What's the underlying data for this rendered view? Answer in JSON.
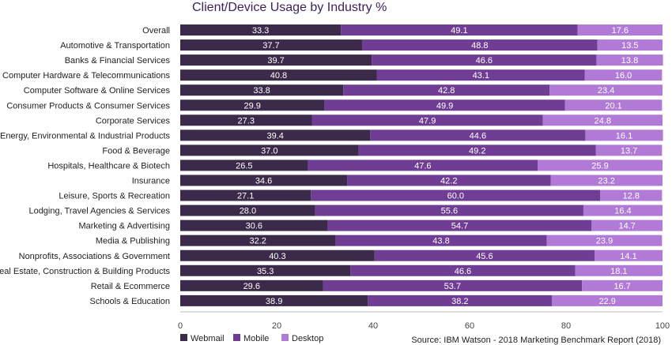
{
  "chart_data": {
    "type": "bar",
    "orientation": "horizontal",
    "stacked": true,
    "title": "Client/Device Usage by Industry %",
    "source": "Source: IBM Watson - 2018 Marketing Benchmark Report (2018)",
    "xlim": [
      0,
      100
    ],
    "xticks": [
      0,
      20,
      40,
      60,
      80,
      100
    ],
    "grid": false,
    "legend_position": "bottom-left",
    "categories": [
      "Overall",
      "Automotive & Transportation",
      "Banks & Financial Services",
      "Computer Hardware & Telecommunications",
      "Computer Software & Online Services",
      "Consumer Products & Consumer Services",
      "Corporate Services",
      "Energy, Environmental & Industrial Products",
      "Food & Beverage",
      "Hospitals, Healthcare & Biotech",
      "Insurance",
      "Leisure, Sports & Recreation",
      "Lodging, Travel Agencies & Services",
      "Marketing & Advertising",
      "Media & Publishing",
      "Nonprofits, Associations & Government",
      "Real Estate, Construction & Building Products",
      "Retail & Ecommerce",
      "Schools & Education"
    ],
    "series": [
      {
        "name": "Webmail",
        "color": "#3b2a4a",
        "values": [
          "33.3",
          "37.7",
          "39.7",
          "40.8",
          "33.8",
          "29.9",
          "27.3",
          "39.4",
          "37.0",
          "26.5",
          "34.6",
          "27.1",
          "28.0",
          "30.6",
          "32.2",
          "40.3",
          "35.3",
          "29.6",
          "38.9"
        ]
      },
      {
        "name": "Mobile",
        "color": "#6f3d94",
        "values": [
          "49.1",
          "48.8",
          "46.6",
          "43.1",
          "42.8",
          "49.9",
          "47.9",
          "44.6",
          "49.2",
          "47.6",
          "42.2",
          "60.0",
          "55.6",
          "54.7",
          "43.8",
          "45.6",
          "46.6",
          "53.7",
          "38.2"
        ]
      },
      {
        "name": "Desktop",
        "color": "#b07ad6",
        "values": [
          "17.6",
          "13.5",
          "13.8",
          "16.0",
          "23.4",
          "20.1",
          "24.8",
          "16.1",
          "13.7",
          "25.9",
          "23.2",
          "12.8",
          "16.4",
          "14.7",
          "23.9",
          "14.1",
          "18.1",
          "16.7",
          "22.9"
        ]
      }
    ]
  }
}
